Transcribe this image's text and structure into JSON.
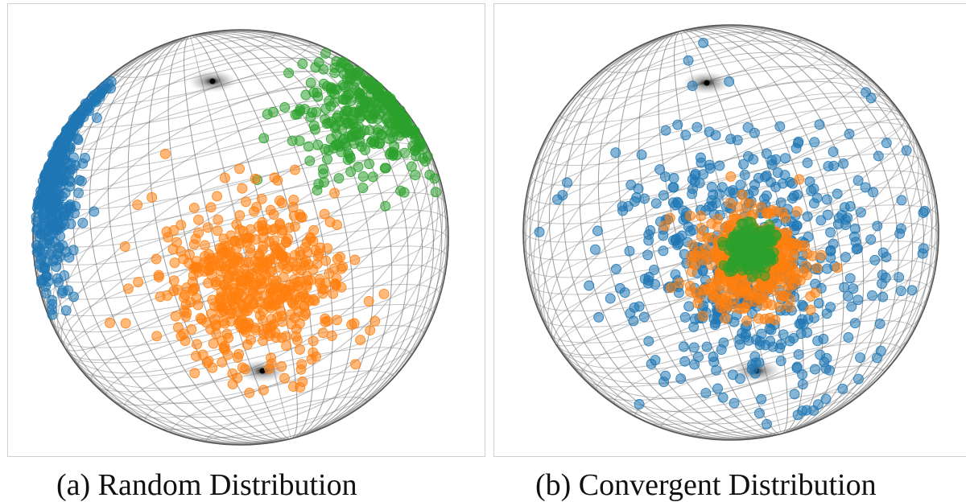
{
  "panels": [
    {
      "caption": "(a) Random Distribution",
      "clusters": [
        {
          "color": "#1f77b4",
          "count": 430,
          "center": [
            -0.92,
            -0.32
          ],
          "spread": [
            0.07,
            0.27
          ],
          "clip": 0.99
        },
        {
          "color": "#2ca02c",
          "count": 340,
          "center": [
            0.62,
            -0.6
          ],
          "spread": [
            0.2,
            0.15
          ],
          "clip": 0.985
        },
        {
          "color": "#ff7f0e",
          "count": 520,
          "center": [
            0.08,
            0.24
          ],
          "spread": [
            0.22,
            0.2
          ],
          "clip": 0.96
        }
      ]
    },
    {
      "caption": "(b) Convergent Distribution",
      "clusters": [
        {
          "color": "#1f77b4",
          "count": 520,
          "center": [
            0.1,
            0.15
          ],
          "spread": [
            0.34,
            0.34
          ],
          "clip": 0.95
        },
        {
          "color": "#ff7f0e",
          "count": 440,
          "center": [
            0.09,
            0.13
          ],
          "spread": [
            0.13,
            0.12
          ],
          "clip": 0.9
        },
        {
          "color": "#2ca02c",
          "count": 330,
          "center": [
            0.1,
            0.08
          ],
          "spread": [
            0.05,
            0.05
          ],
          "clip": 0.9
        }
      ]
    }
  ]
}
